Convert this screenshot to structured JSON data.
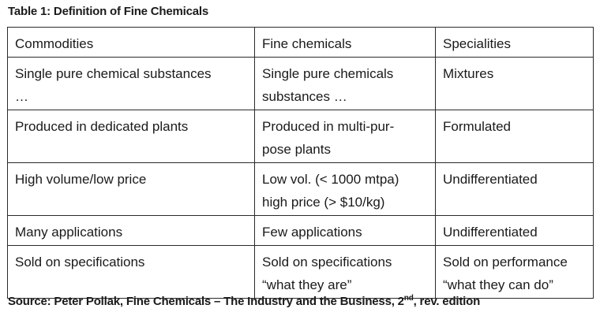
{
  "caption": "Table 1: Definition of Fine Chemicals",
  "table": {
    "headers": [
      "Commodities",
      "Fine chemicals",
      "Specialities"
    ],
    "rows": [
      [
        [
          "Single pure chemical substances",
          "…"
        ],
        [
          "Single pure chemicals",
          "substances …"
        ],
        [
          "Mixtures"
        ]
      ],
      [
        [
          "Produced in dedicated plants"
        ],
        [
          "Produced in multi-pur-",
          "pose plants"
        ],
        [
          "Formulated"
        ]
      ],
      [
        [
          "High volume/low price"
        ],
        [
          "Low vol. (< 1000 mtpa)",
          "high price (> $10/kg)"
        ],
        [
          "Undifferentiated"
        ]
      ],
      [
        [
          "Many applications"
        ],
        [
          "Few applications"
        ],
        [
          "Undifferentiated"
        ]
      ],
      [
        [
          "Sold on specifications"
        ],
        [
          "Sold on specifications",
          "“what they are”"
        ],
        [
          "Sold on performance",
          "“what they can do”"
        ]
      ]
    ]
  },
  "source": {
    "prefix": "Source: Peter Pollak, Fine Chemicals – The Industry and the Business, 2",
    "sup": "nd",
    "suffix": ", rev. edition"
  }
}
